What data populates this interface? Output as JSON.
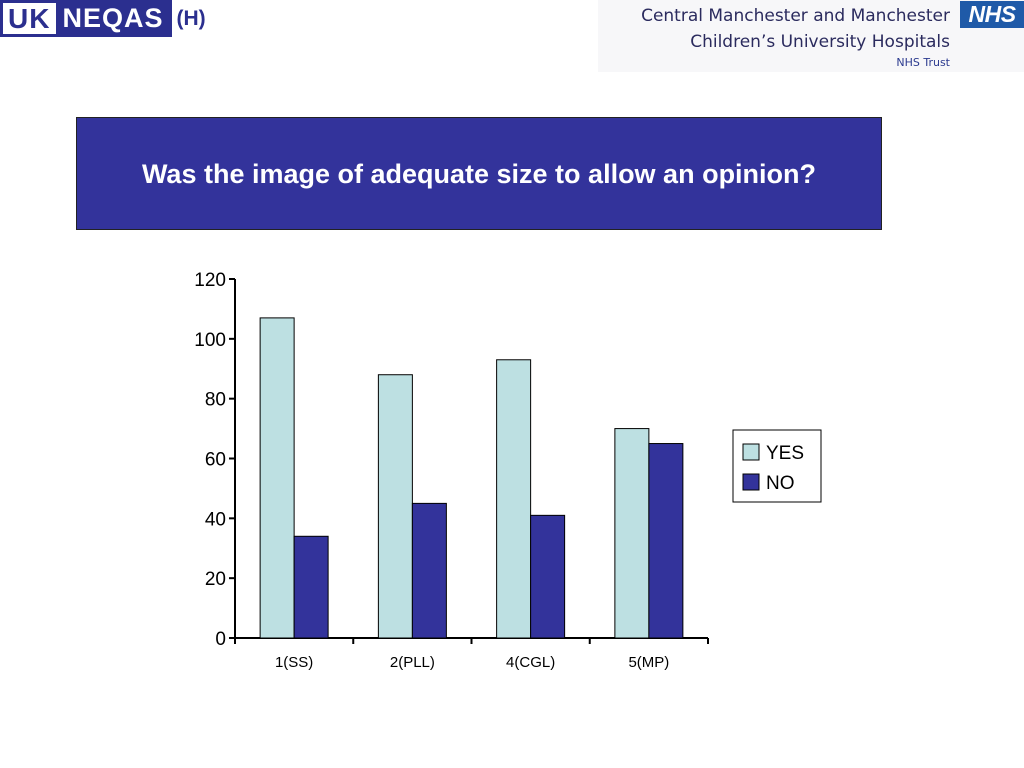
{
  "header": {
    "logo_uk": "UK",
    "logo_neqas": "NEQAS",
    "logo_suffix": "(H)",
    "trust_line1": "Central Manchester and Manchester",
    "trust_line2": "Children’s University Hospitals",
    "trust_line3": "NHS Trust",
    "nhs_badge": "NHS"
  },
  "colors": {
    "yes": "#bde0e2",
    "no": "#33339b",
    "banner": "#33339b"
  },
  "chart_data": {
    "type": "bar",
    "title": "Was the image of adequate size to allow an opinion?",
    "categories": [
      "1(SS)",
      "2(PLL)",
      "4(CGL)",
      "5(MP)"
    ],
    "series": [
      {
        "name": "YES",
        "values": [
          107,
          88,
          93,
          70
        ]
      },
      {
        "name": "NO",
        "values": [
          34,
          45,
          41,
          65
        ]
      }
    ],
    "ylim": [
      0,
      120
    ],
    "yticks": [
      0,
      20,
      40,
      60,
      80,
      100,
      120
    ],
    "xlabel": "",
    "ylabel": "",
    "grid": false,
    "legend": "right"
  }
}
